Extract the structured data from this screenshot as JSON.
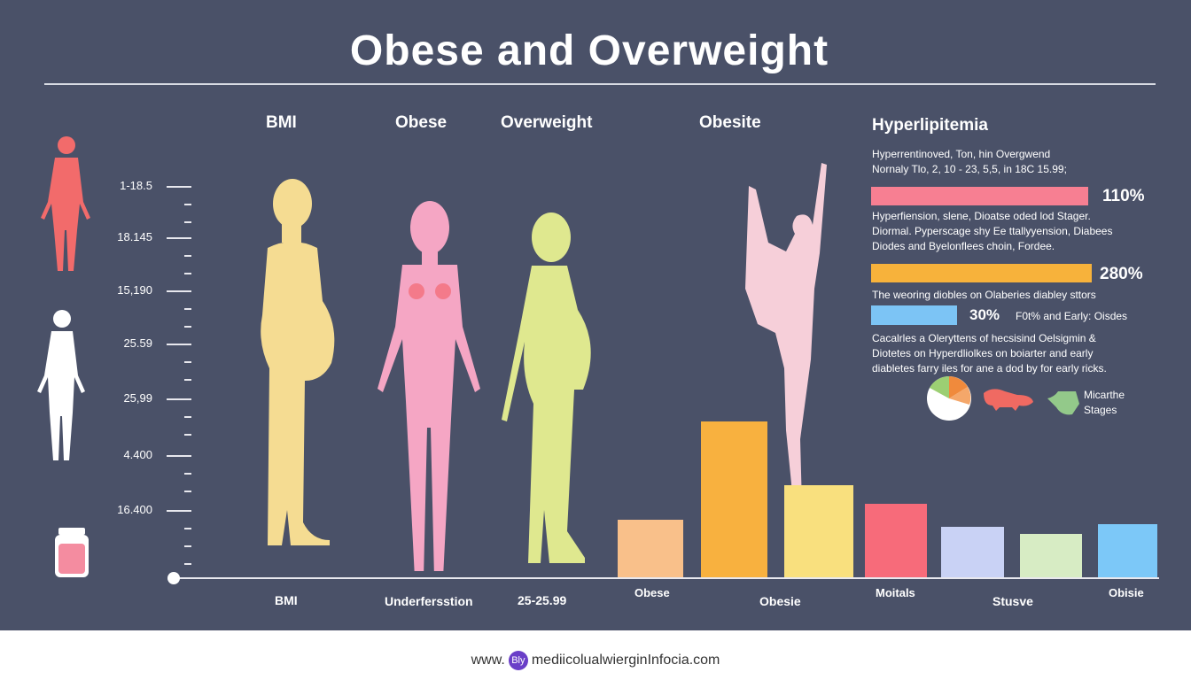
{
  "title": "Obese and Overweight",
  "columns": [
    "BMI",
    "Obese",
    "Overweight",
    "Obesite"
  ],
  "scale_labels": [
    "1-18.5",
    "18.145",
    "15,190",
    "25.59",
    "25,99",
    "4.400",
    "16.400"
  ],
  "x_labels": [
    "BMI",
    "Underfersstion",
    "25-25.99",
    "Obese",
    "Obesie",
    "Moitals",
    "Stusve",
    "Obisie"
  ],
  "bars": {
    "relative_values": [
      65,
      176,
      104,
      83,
      57,
      49,
      60
    ],
    "colors": [
      "#f9c08a",
      "#f8b13f",
      "#f9e07e",
      "#f76b7a",
      "#c9d2f5",
      "#d7ecc4",
      "#7cc8f8"
    ]
  },
  "figure_colors": {
    "bmi": "#f5dc92",
    "obese": "#f5a6c4",
    "overweight": "#dfe88f",
    "obesite": "#f6cfd9",
    "left_red": "#f26b6b"
  },
  "right": {
    "heading": "Hyperlipitemia",
    "text1": [
      "Hyperrentinoved, Ton, hin Overgwend",
      "Nornaly Tlo, 2, 10 - 23, 5,5, in 18C 15.99;"
    ],
    "bar1": {
      "pct": "110%",
      "color": "#f77f92"
    },
    "text2": [
      "Hyperfiension, slene, Dioatse oded lod Stager.",
      "Diormal. Pyperscage shy Ee ttallyyension, Diabees",
      "Diodes and Byelonflees choin, Fordee."
    ],
    "bar2": {
      "pct": "280%",
      "color": "#f7b23b"
    },
    "text3": "The weoring diobles on Olaberies diabley sttors",
    "bar3": {
      "pct": "30%",
      "color": "#7cc4f5",
      "note": "F0t% and Early: Oisdes"
    },
    "text4": [
      "Cacalrles a Oleryttens of hecsisind Oelsigmin &",
      "Diotetes on Hyperdliolkes on boiarter and early",
      "diabletes farry iles for ane a dod by for early ricks."
    ],
    "icons": [
      "pie-chart-icon",
      "organ-icon",
      "stomach-icon"
    ],
    "icon_caption": [
      "Micarthe",
      "Stages"
    ]
  },
  "footer": {
    "prefix": "www.",
    "logo": "Bly",
    "domain": "mediicolualwierginInfocia.com"
  }
}
